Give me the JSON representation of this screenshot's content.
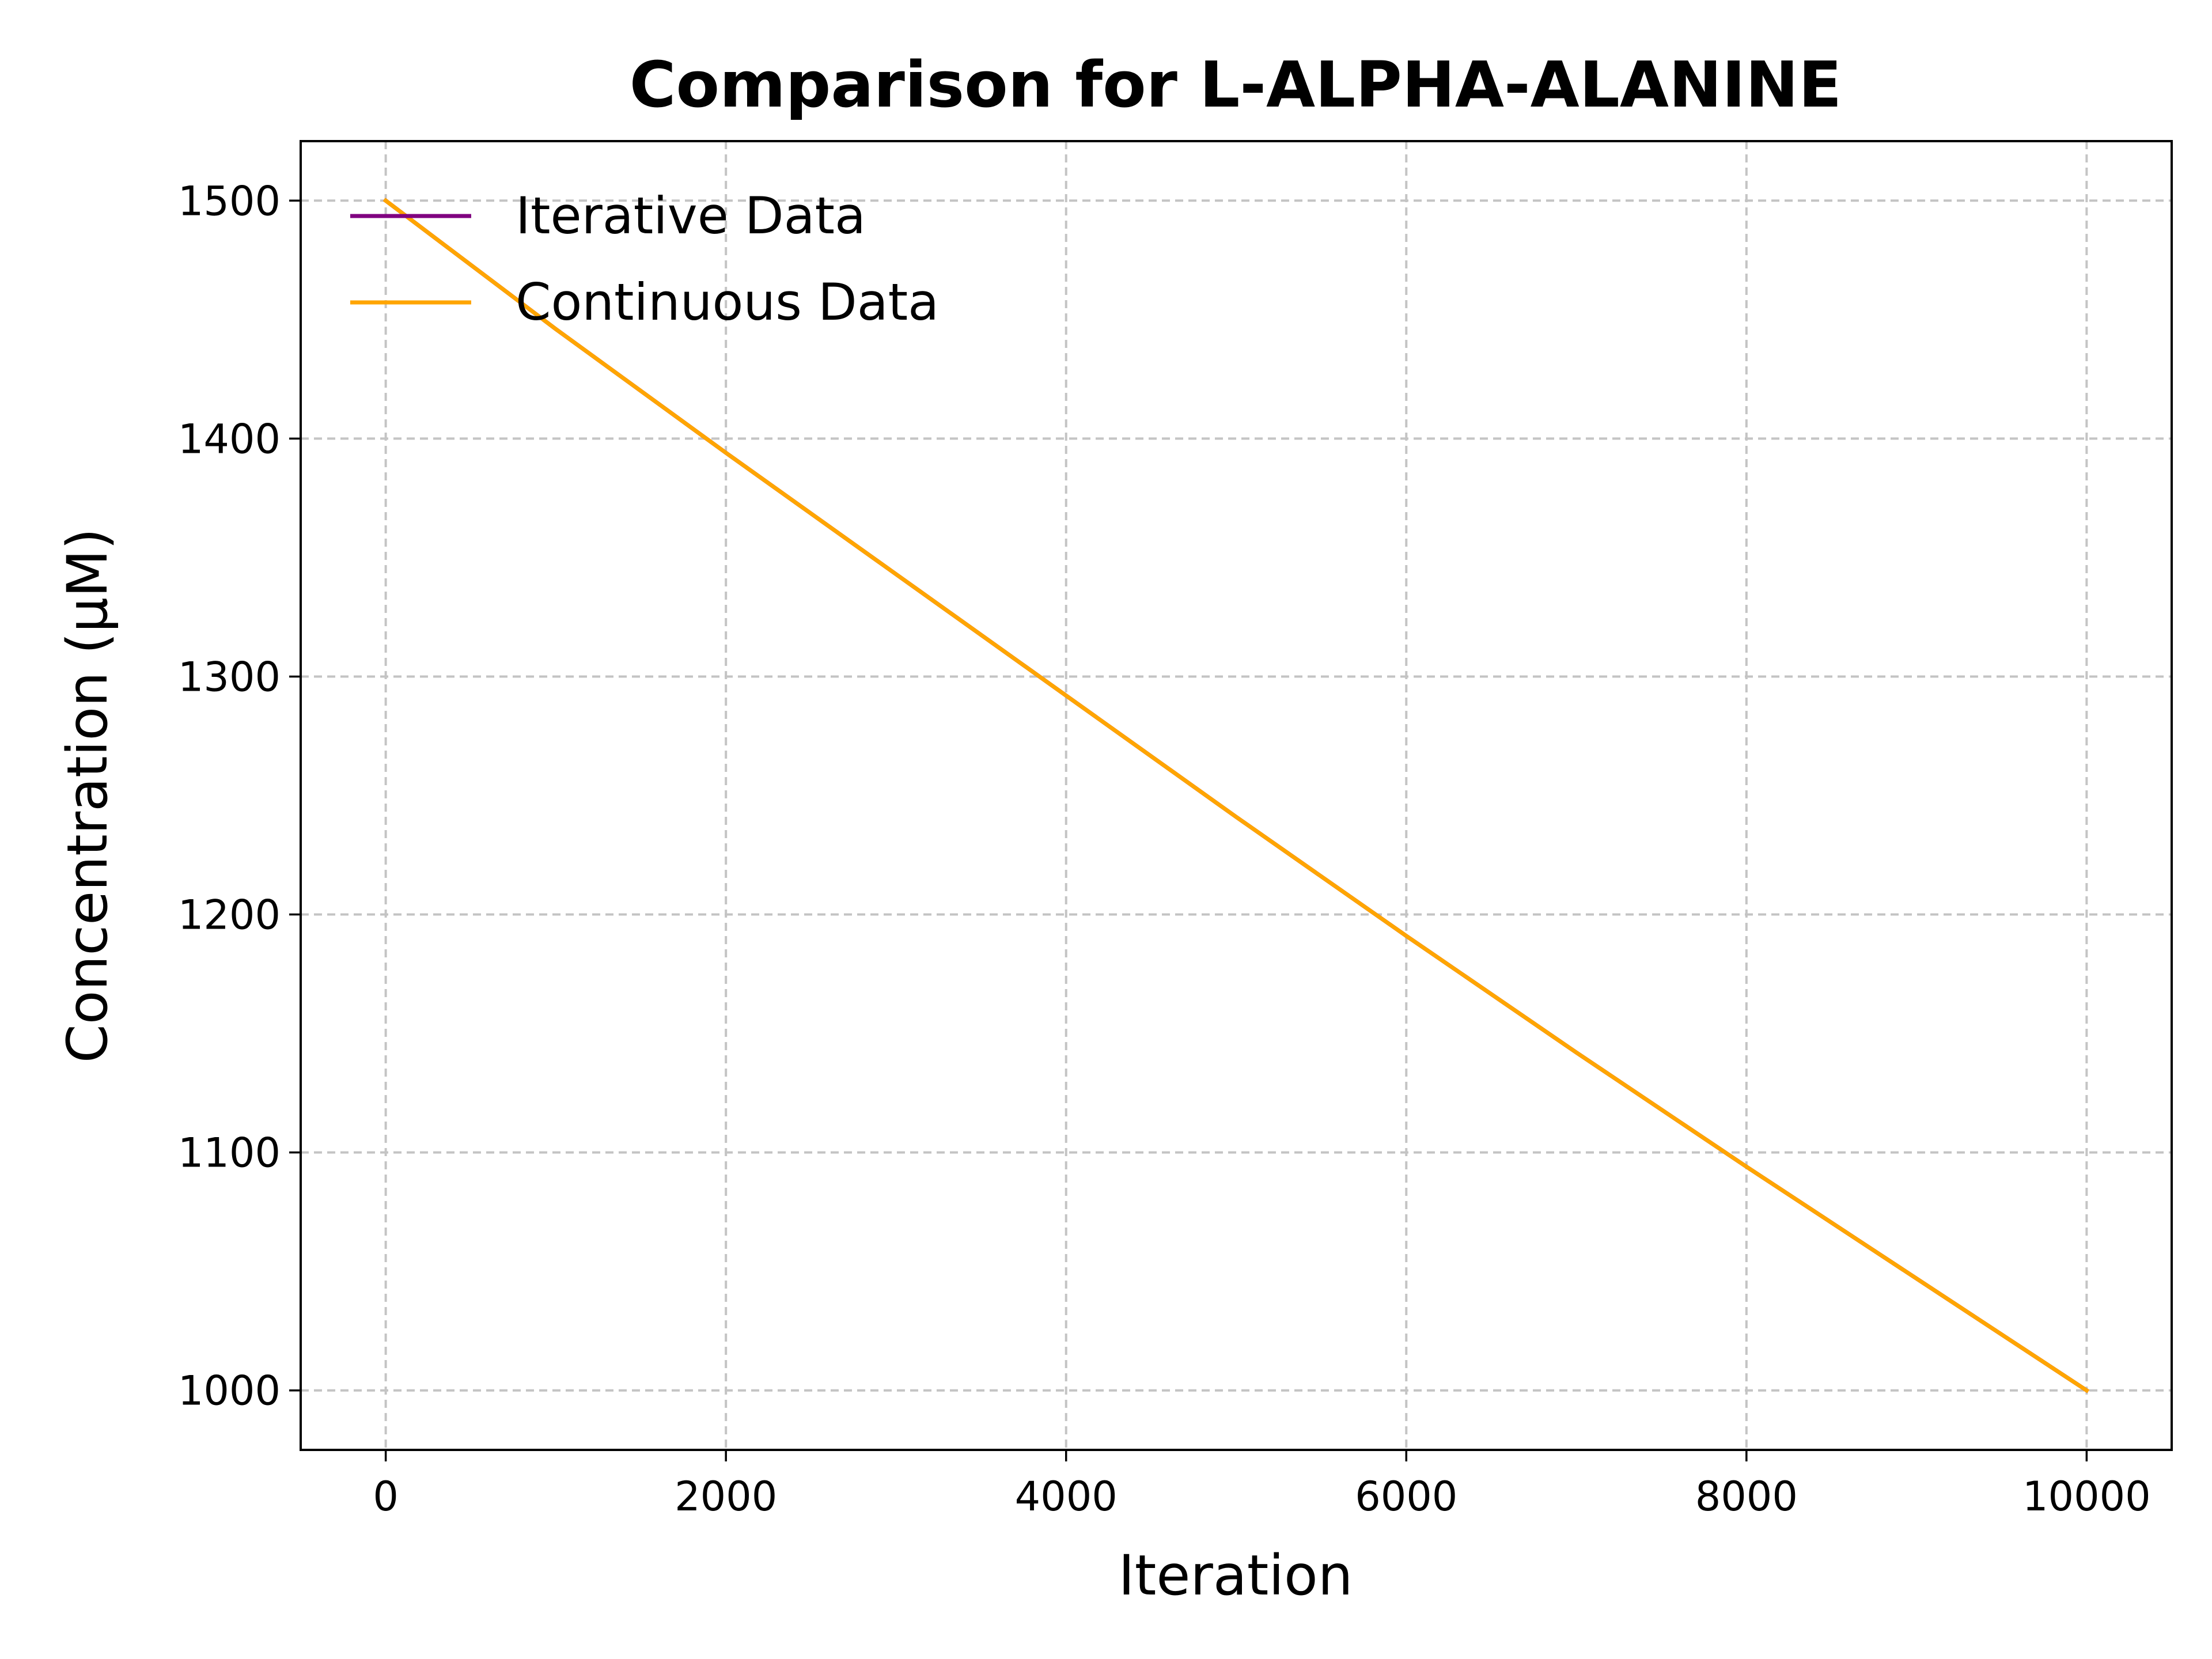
{
  "chart_data": {
    "type": "line",
    "title": "Comparison for L-ALPHA-ALANINE",
    "xlabel": "Iteration",
    "ylabel": "Concentration (μM)",
    "xlim": [
      -500,
      10500
    ],
    "ylim": [
      975,
      1525
    ],
    "xticks": [
      0,
      2000,
      4000,
      6000,
      8000,
      10000
    ],
    "yticks": [
      1000,
      1100,
      1200,
      1300,
      1400,
      1500
    ],
    "grid": true,
    "legend_position": "top-left",
    "series": [
      {
        "name": "Iterative Data",
        "color": "#800080",
        "x": [
          0,
          1000,
          2000,
          3000,
          4000,
          5000,
          6000,
          7000,
          8000,
          9000,
          10000
        ],
        "y": [
          1500,
          1446,
          1394,
          1343,
          1292,
          1241,
          1191,
          1142,
          1094,
          1047,
          1000
        ]
      },
      {
        "name": "Continuous Data",
        "color": "#FFA500",
        "x": [
          0,
          1000,
          2000,
          3000,
          4000,
          5000,
          6000,
          7000,
          8000,
          9000,
          10000
        ],
        "y": [
          1500,
          1446,
          1394,
          1343,
          1292,
          1241,
          1191,
          1142,
          1094,
          1047,
          1000
        ]
      }
    ]
  }
}
